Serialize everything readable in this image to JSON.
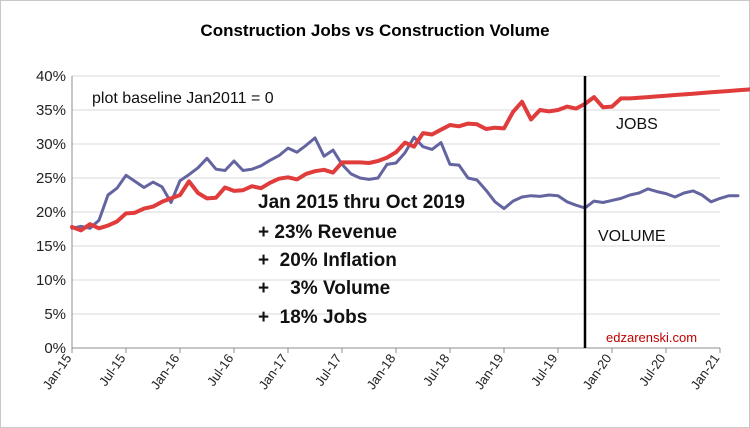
{
  "chart_data": {
    "type": "line",
    "title": "Construction Jobs vs Construction Volume",
    "xlabel": "",
    "ylabel": "",
    "ylim": [
      0,
      40
    ],
    "y_unit": "%",
    "y_ticks": [
      "0%",
      "5%",
      "10%",
      "15%",
      "20%",
      "25%",
      "30%",
      "35%",
      "40%"
    ],
    "x_tick_labels": [
      "Jan-15",
      "Jul-15",
      "Jan-16",
      "Jul-16",
      "Jan-17",
      "Jul-17",
      "Jan-18",
      "Jul-18",
      "Jan-19",
      "Jul-19",
      "Jan-20",
      "Jul-20",
      "Jan-21"
    ],
    "grid": "horizontal",
    "legend": "none (series labeled inline)",
    "x_months_from": "Jan-15",
    "series": [
      {
        "name": "JOBS",
        "color": "#e03c3c",
        "values": [
          17.8,
          17.3,
          18.2,
          17.6,
          18.0,
          18.6,
          19.8,
          19.9,
          20.5,
          20.8,
          21.5,
          22.0,
          22.5,
          24.5,
          22.8,
          22.0,
          22.1,
          23.6,
          23.1,
          23.2,
          23.8,
          23.5,
          24.3,
          24.9,
          25.1,
          24.8,
          25.6,
          26.0,
          26.2,
          25.8,
          27.3,
          27.3,
          27.3,
          27.2,
          27.5,
          28.0,
          28.8,
          30.2,
          29.6,
          31.6,
          31.4,
          32.1,
          32.8,
          32.6,
          33.0,
          32.9,
          32.2,
          32.4,
          32.3,
          34.7,
          36.2,
          33.6,
          35.0,
          34.8,
          35.0,
          35.5,
          35.2,
          35.9,
          36.9,
          35.4,
          35.5,
          36.7,
          36.7,
          36.8,
          36.9,
          37.0,
          37.1,
          37.2,
          37.3,
          37.4,
          37.5,
          37.6,
          37.7,
          37.8,
          37.9,
          38.0,
          38.1,
          38.2,
          38.3
        ]
      },
      {
        "name": "VOLUME",
        "color": "#6464a0",
        "values": [
          17.6,
          17.9,
          17.6,
          18.8,
          22.5,
          23.5,
          25.4,
          24.5,
          23.6,
          24.4,
          23.7,
          21.4,
          24.6,
          25.5,
          26.5,
          27.9,
          26.3,
          26.1,
          27.5,
          26.1,
          26.3,
          26.8,
          27.6,
          28.3,
          29.4,
          28.8,
          29.8,
          30.9,
          28.2,
          29.1,
          27.0,
          25.6,
          25.0,
          24.8,
          25.0,
          27.0,
          27.2,
          28.7,
          31.0,
          29.6,
          29.2,
          30.2,
          27.0,
          26.9,
          25.0,
          24.7,
          23.2,
          21.5,
          20.5,
          21.6,
          22.2,
          22.4,
          22.3,
          22.5,
          22.4,
          21.5,
          21.0,
          20.6,
          21.6,
          21.4,
          21.7,
          22.0,
          22.5,
          22.8,
          23.4,
          23.0,
          22.7,
          22.2,
          22.8,
          23.1,
          22.5,
          21.5,
          22.0,
          22.4,
          22.4
        ]
      }
    ],
    "marker_line_at": "Oct-19",
    "annotations": {
      "baseline": "plot baseline Jan2011 = 0",
      "jobs_label": "JOBS",
      "volume_label": "VOLUME",
      "summary_title": "Jan 2015 thru Oct 2019",
      "summary_lines": [
        "+  23% Revenue",
        "+  20% Inflation",
        "+    3% Volume",
        "+  18% Jobs"
      ],
      "credit": "edzarenski.com"
    }
  }
}
